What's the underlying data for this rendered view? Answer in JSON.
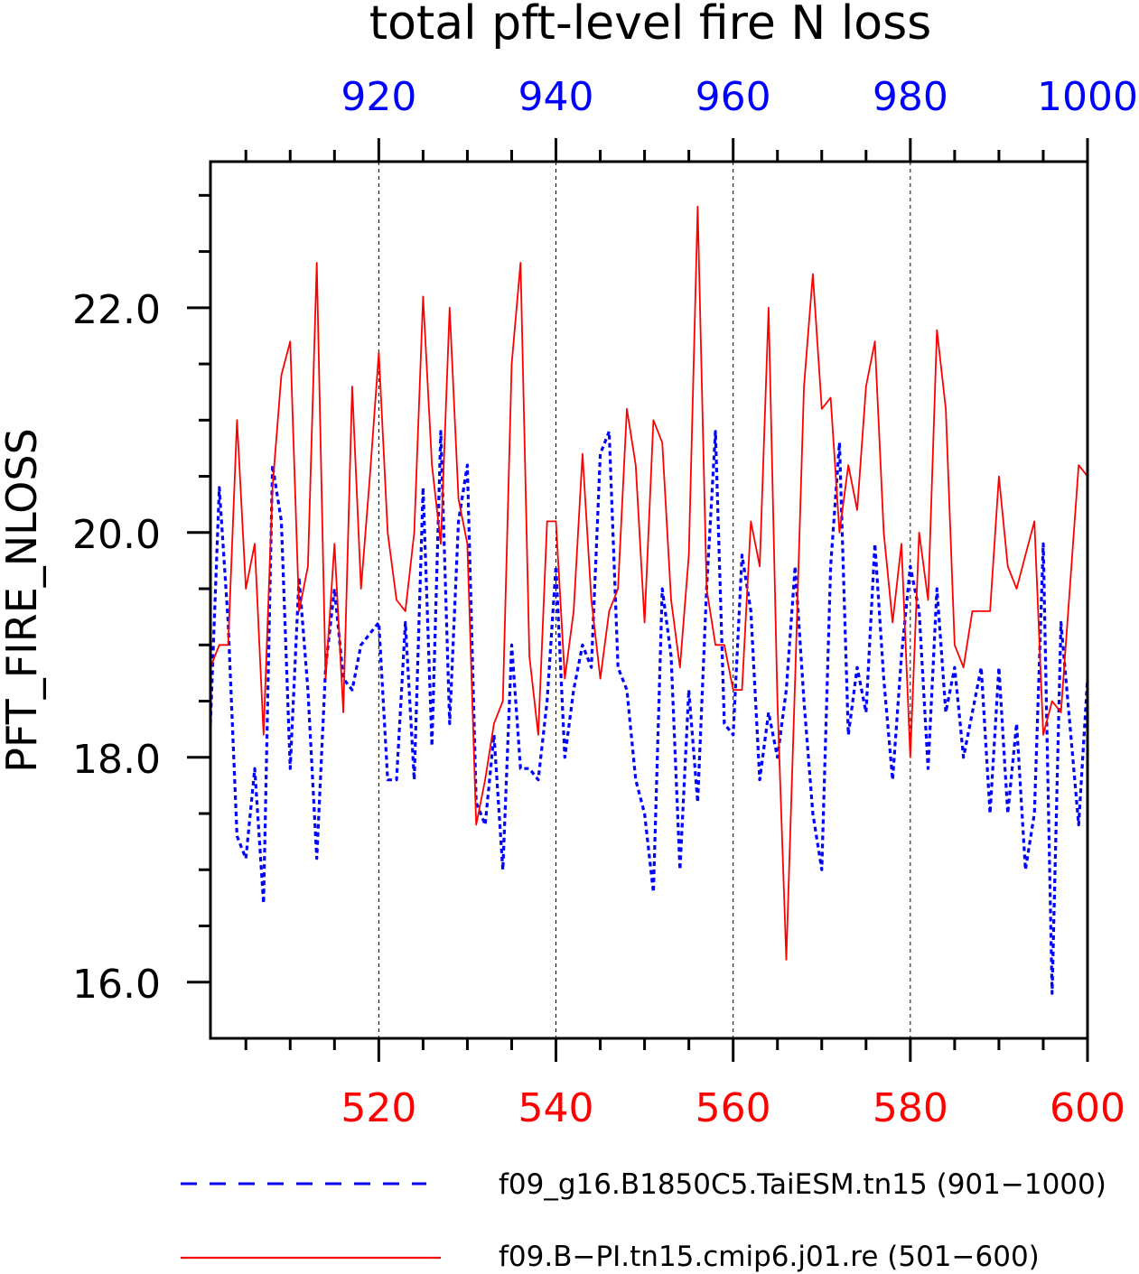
{
  "chart_data": {
    "type": "line",
    "title": "total pft-level fire N loss",
    "ylabel": "PFT_FIRE_NLOSS",
    "ylim": [
      15.5,
      23.3
    ],
    "y_ticks": [
      16.0,
      18.0,
      20.0,
      22.0
    ],
    "y_tick_labels": [
      "16.0",
      "18.0",
      "20.0",
      "22.0"
    ],
    "grid": "vertical dashed at labeled x ticks",
    "bottom_axis": {
      "range": [
        501,
        600
      ],
      "ticks": [
        520,
        540,
        560,
        580,
        600
      ],
      "tick_labels": [
        "520",
        "540",
        "560",
        "580",
        "600"
      ],
      "color": "#ff0000"
    },
    "top_axis": {
      "range": [
        901,
        1000
      ],
      "ticks": [
        920,
        940,
        960,
        980,
        1000
      ],
      "tick_labels": [
        "920",
        "940",
        "960",
        "980",
        "1000"
      ],
      "color": "#0000ff"
    },
    "series": [
      {
        "name": "f09_g16.B1850C5.TaiESM.tn15 (901−1000)",
        "axis": "top",
        "color": "#0000ff",
        "style": "dashed",
        "x_start": 901,
        "values": [
          18.3,
          20.4,
          19.2,
          17.3,
          17.1,
          17.9,
          16.7,
          20.6,
          20.1,
          17.9,
          19.6,
          18.6,
          17.1,
          18.8,
          19.5,
          18.7,
          18.6,
          19.0,
          19.1,
          19.2,
          17.8,
          17.8,
          19.2,
          17.8,
          20.4,
          18.1,
          20.9,
          18.3,
          20.1,
          20.6,
          17.6,
          17.4,
          18.2,
          17.0,
          19.0,
          17.9,
          17.9,
          17.8,
          18.5,
          19.7,
          18.0,
          18.6,
          19.0,
          18.8,
          20.7,
          20.9,
          18.8,
          18.6,
          17.8,
          17.5,
          16.8,
          19.5,
          18.9,
          17.0,
          18.6,
          17.6,
          19.5,
          20.9,
          18.3,
          18.2,
          19.8,
          19.3,
          17.8,
          18.4,
          18.0,
          18.6,
          19.7,
          18.5,
          17.5,
          17.0,
          19.7,
          20.8,
          18.2,
          18.8,
          18.4,
          19.9,
          18.7,
          17.8,
          18.9,
          19.7,
          19.3,
          17.9,
          19.5,
          18.4,
          18.8,
          18.0,
          18.4,
          18.8,
          17.5,
          18.8,
          17.5,
          18.3,
          17.0,
          17.5,
          19.9,
          15.9,
          19.2,
          18.3,
          17.4,
          18.7
        ]
      },
      {
        "name": "f09.B−PI.tn15.cmip6.j01.re (501−600)",
        "axis": "bottom",
        "color": "#ff0000",
        "style": "solid",
        "x_start": 501,
        "values": [
          18.8,
          19.0,
          19.0,
          21.0,
          19.5,
          19.9,
          18.2,
          20.4,
          21.4,
          21.7,
          19.3,
          19.7,
          22.4,
          18.7,
          19.9,
          18.4,
          21.3,
          19.5,
          20.5,
          21.6,
          20.0,
          19.4,
          19.3,
          20.0,
          22.1,
          20.6,
          19.9,
          22.0,
          20.3,
          19.9,
          17.4,
          17.8,
          18.3,
          18.5,
          21.5,
          22.4,
          18.9,
          18.2,
          20.1,
          20.1,
          18.7,
          19.3,
          20.7,
          19.4,
          18.7,
          19.3,
          19.5,
          21.1,
          20.6,
          19.2,
          21.0,
          20.8,
          19.4,
          18.8,
          19.8,
          22.9,
          19.5,
          19.0,
          19.0,
          18.6,
          18.6,
          20.1,
          19.7,
          22.0,
          18.5,
          16.2,
          18.7,
          21.3,
          22.3,
          21.1,
          21.2,
          20.0,
          20.6,
          20.2,
          21.3,
          21.7,
          20.0,
          19.2,
          19.9,
          18.0,
          20.0,
          19.4,
          21.8,
          21.1,
          19.0,
          18.8,
          19.3,
          19.3,
          19.3,
          20.5,
          19.7,
          19.5,
          19.8,
          20.1,
          18.2,
          18.5,
          18.4,
          19.5,
          20.6,
          20.5
        ]
      }
    ]
  }
}
